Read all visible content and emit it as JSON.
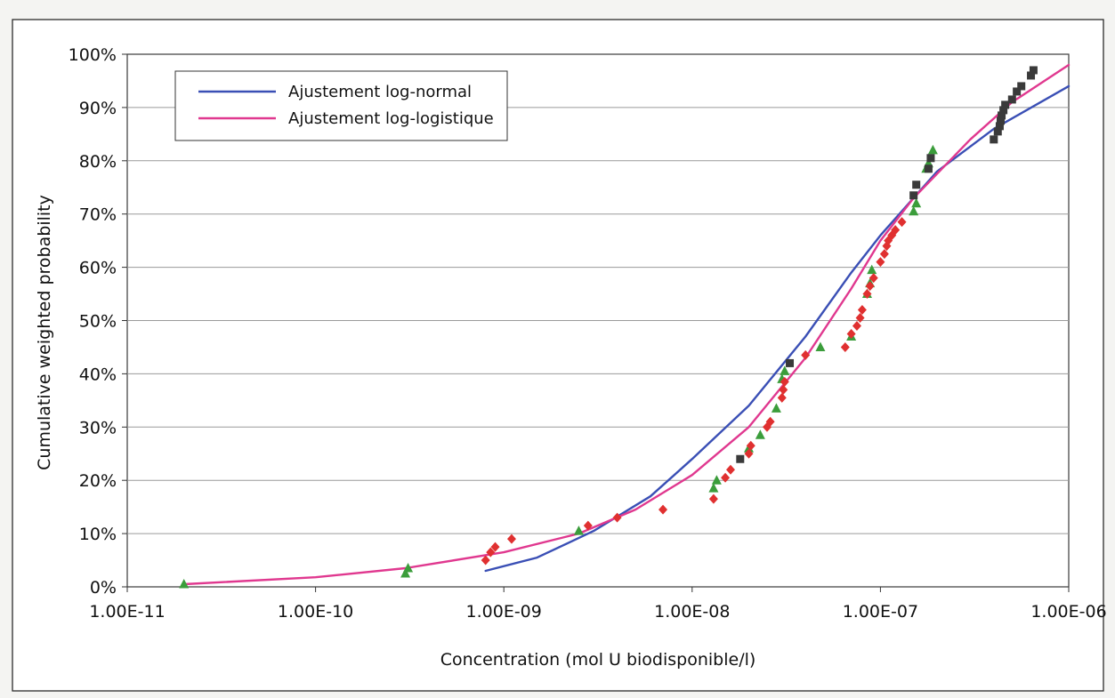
{
  "chart_data": {
    "type": "scatter",
    "title": "",
    "xlabel": "Concentration (mol U biodisponible/l)",
    "ylabel": "Cumulative weighted probability",
    "x_scale": "log",
    "xlim": [
      1e-11,
      1e-06
    ],
    "ylim": [
      0,
      100
    ],
    "x_ticks": [
      1e-11,
      1e-10,
      1e-09,
      1e-08,
      1e-07,
      1e-06
    ],
    "x_tick_labels": [
      "1.00E-11",
      "1.00E-10",
      "1.00E-09",
      "1.00E-08",
      "1.00E-07",
      "1.00E-06"
    ],
    "y_ticks": [
      0,
      10,
      20,
      30,
      40,
      50,
      60,
      70,
      80,
      90,
      100
    ],
    "y_tick_labels": [
      "0%",
      "10%",
      "20%",
      "30%",
      "40%",
      "50%",
      "60%",
      "70%",
      "80%",
      "90%",
      "100%"
    ],
    "grid": "horizontal",
    "legend": {
      "position": "top-left",
      "entries": [
        {
          "label": "Ajustement log-normal",
          "color": "#3a4fb5"
        },
        {
          "label": "Ajustement log-logistique",
          "color": "#e0388f"
        }
      ]
    },
    "series": [
      {
        "name": "Ajustement log-normal",
        "kind": "line",
        "color": "#3a4fb5",
        "points": [
          [
            8e-10,
            3
          ],
          [
            1.5e-09,
            5.5
          ],
          [
            3e-09,
            10.5
          ],
          [
            6e-09,
            17
          ],
          [
            1e-08,
            24
          ],
          [
            2e-08,
            34
          ],
          [
            4e-08,
            47
          ],
          [
            7e-08,
            59
          ],
          [
            1e-07,
            66
          ],
          [
            2e-07,
            78
          ],
          [
            4e-07,
            86
          ],
          [
            1e-06,
            94
          ]
        ]
      },
      {
        "name": "Ajustement log-logistique",
        "kind": "line",
        "color": "#e0388f",
        "points": [
          [
            2e-11,
            0.5
          ],
          [
            1e-10,
            1.8
          ],
          [
            3e-10,
            3.5
          ],
          [
            1e-09,
            6.5
          ],
          [
            2.5e-09,
            10
          ],
          [
            5e-09,
            14.5
          ],
          [
            1e-08,
            21
          ],
          [
            2e-08,
            30
          ],
          [
            4e-08,
            43
          ],
          [
            7e-08,
            56
          ],
          [
            1e-07,
            65
          ],
          [
            1.5e-07,
            73
          ],
          [
            3e-07,
            84
          ],
          [
            5e-07,
            91
          ],
          [
            1e-06,
            98
          ]
        ]
      },
      {
        "kind": "markers",
        "marker": "triangle",
        "color": "#3b9d3b",
        "points": [
          [
            2e-11,
            0.5
          ],
          [
            3e-10,
            2.5
          ],
          [
            3.1e-10,
            3.5
          ],
          [
            2.5e-09,
            10.5
          ],
          [
            1.3e-08,
            18.5
          ],
          [
            1.35e-08,
            20
          ],
          [
            2e-08,
            26
          ],
          [
            2.3e-08,
            28.5
          ],
          [
            2.8e-08,
            33.5
          ],
          [
            3e-08,
            39
          ],
          [
            3.1e-08,
            40.5
          ],
          [
            4.8e-08,
            45
          ],
          [
            7e-08,
            47
          ],
          [
            8.5e-08,
            55
          ],
          [
            8.8e-08,
            57
          ],
          [
            9e-08,
            59.5
          ],
          [
            1.5e-07,
            70.5
          ],
          [
            1.55e-07,
            72
          ],
          [
            1.75e-07,
            78.5
          ],
          [
            1.8e-07,
            79.5
          ],
          [
            1.9e-07,
            82
          ]
        ]
      },
      {
        "kind": "markers",
        "marker": "diamond",
        "color": "#e03030",
        "points": [
          [
            8e-10,
            5
          ],
          [
            8.5e-10,
            6.5
          ],
          [
            9e-10,
            7.5
          ],
          [
            1.1e-09,
            9
          ],
          [
            2.8e-09,
            11.5
          ],
          [
            4e-09,
            13
          ],
          [
            7e-09,
            14.5
          ],
          [
            1.3e-08,
            16.5
          ],
          [
            1.5e-08,
            20.5
          ],
          [
            1.6e-08,
            22
          ],
          [
            2e-08,
            25
          ],
          [
            2.05e-08,
            26.5
          ],
          [
            2.5e-08,
            30
          ],
          [
            2.6e-08,
            31
          ],
          [
            3e-08,
            35.5
          ],
          [
            3.05e-08,
            37
          ],
          [
            3.1e-08,
            38.5
          ],
          [
            4e-08,
            43.5
          ],
          [
            6.5e-08,
            45
          ],
          [
            7e-08,
            47.5
          ],
          [
            7.5e-08,
            49
          ],
          [
            7.8e-08,
            50.5
          ],
          [
            8e-08,
            52
          ],
          [
            8.5e-08,
            55
          ],
          [
            8.8e-08,
            56.5
          ],
          [
            9.2e-08,
            58
          ],
          [
            1e-07,
            61
          ],
          [
            1.05e-07,
            62.5
          ],
          [
            1.08e-07,
            64
          ],
          [
            1.1e-07,
            65
          ],
          [
            1.15e-07,
            66
          ],
          [
            1.2e-07,
            67
          ],
          [
            1.3e-07,
            68.5
          ]
        ]
      },
      {
        "kind": "markers",
        "marker": "square",
        "color": "#3a3a3a",
        "points": [
          [
            1.8e-08,
            24
          ],
          [
            3.3e-08,
            42
          ],
          [
            1.5e-07,
            73.5
          ],
          [
            1.55e-07,
            75.5
          ],
          [
            1.8e-07,
            78.5
          ],
          [
            1.85e-07,
            80.5
          ],
          [
            4e-07,
            84
          ],
          [
            4.2e-07,
            85.5
          ],
          [
            4.3e-07,
            86.5
          ],
          [
            4.35e-07,
            87.5
          ],
          [
            4.4e-07,
            88.5
          ],
          [
            4.5e-07,
            89.5
          ],
          [
            4.6e-07,
            90.5
          ],
          [
            5e-07,
            91.5
          ],
          [
            5.3e-07,
            93
          ],
          [
            5.6e-07,
            94
          ],
          [
            6.3e-07,
            96
          ],
          [
            6.5e-07,
            97
          ]
        ]
      }
    ]
  }
}
